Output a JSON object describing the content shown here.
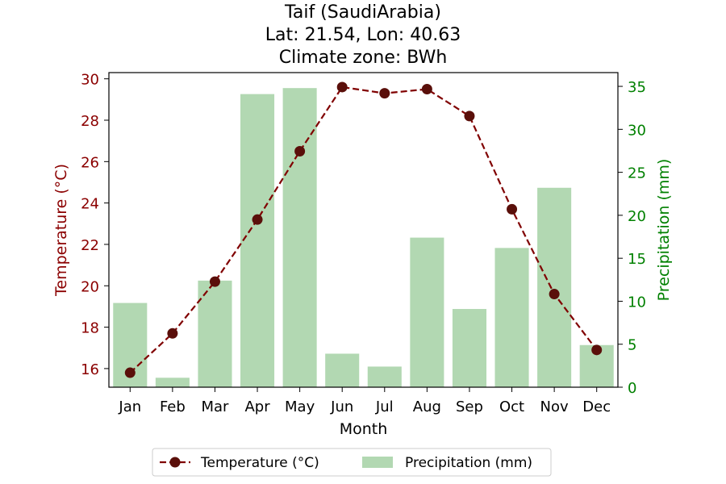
{
  "chart_data": {
    "type": "bar+line",
    "title_lines": [
      "Taif (SaudiArabia)",
      "Lat: 21.54, Lon: 40.63",
      "Climate zone: BWh"
    ],
    "xlabel": "Month",
    "ylabel_left": "Temperature (°C)",
    "ylabel_right": "Precipitation (mm)",
    "categories": [
      "Jan",
      "Feb",
      "Mar",
      "Apr",
      "May",
      "Jun",
      "Jul",
      "Aug",
      "Sep",
      "Oct",
      "Nov",
      "Dec"
    ],
    "temperature": {
      "name": "Temperature (°C)",
      "values": [
        15.8,
        17.7,
        20.2,
        23.2,
        26.5,
        29.6,
        29.3,
        29.5,
        28.2,
        23.7,
        19.6,
        16.9
      ]
    },
    "precipitation": {
      "name": "Precipitation (mm)",
      "values": [
        9.8,
        1.1,
        12.4,
        34.1,
        34.8,
        3.9,
        2.4,
        17.4,
        9.1,
        16.2,
        23.2,
        4.9
      ]
    },
    "ylim_left": [
      15.1,
      30.3
    ],
    "yticks_left": [
      16,
      18,
      20,
      22,
      24,
      26,
      28,
      30
    ],
    "ylim_right": [
      0,
      36.6
    ],
    "yticks_right": [
      0,
      5,
      10,
      15,
      20,
      25,
      30,
      35
    ],
    "grid": false,
    "legend_position": "bottom-center",
    "colors": {
      "temperature": "#800000",
      "temperature_marker": "#5a0f0a",
      "precipitation": "#b2d8b2",
      "left_axis": "#8b0000",
      "right_axis": "#008000",
      "text": "#000000"
    }
  }
}
